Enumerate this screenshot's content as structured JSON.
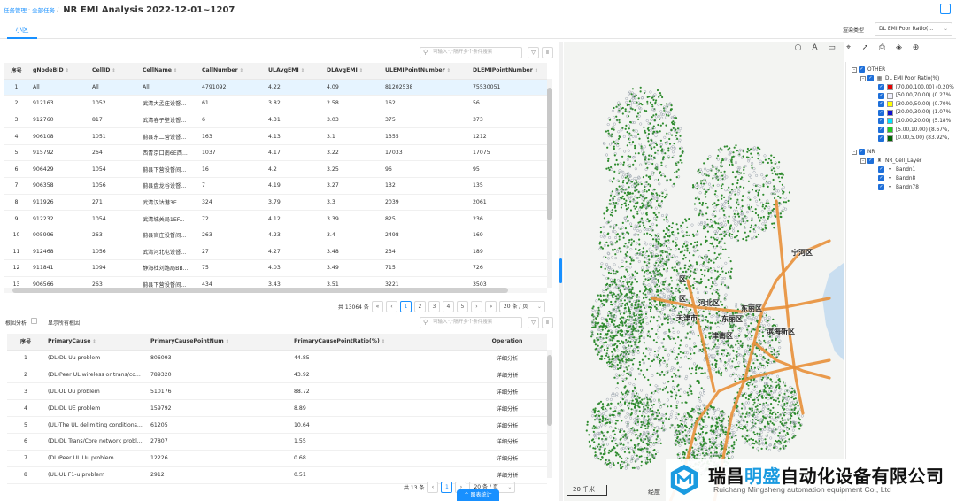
{
  "header": {
    "breadcrumb_1": "任务管理",
    "breadcrumb_sep": "·",
    "breadcrumb_2": "全部任务",
    "separator": "/",
    "title": "NR EMI Analysis 2022-12-01~1207"
  },
  "tabs": [
    {
      "label": "小区"
    }
  ],
  "layer_type": {
    "label": "渲染类型",
    "value": "DL EMI Poor Ratio(..."
  },
  "cell_table": {
    "search_placeholder": "可输入\",\"隔开多个条件搜索",
    "columns": [
      "序号",
      "gNodeBID",
      "CellID",
      "CellName",
      "CallNumber",
      "ULAvgEMI",
      "DLAvgEMI",
      "ULEMIPointNumber",
      "DLEMIPointNumber"
    ],
    "rows": [
      [
        "1",
        "All",
        "All",
        "All",
        "4791092",
        "4.22",
        "4.09",
        "81202538",
        "75530051"
      ],
      [
        "2",
        "912163",
        "1052",
        "武清大孟庄设督...",
        "61",
        "3.82",
        "2.58",
        "162",
        "56"
      ],
      [
        "3",
        "912760",
        "817",
        "武清春子壁设督...",
        "6",
        "4.31",
        "3.03",
        "375",
        "373"
      ],
      [
        "4",
        "906108",
        "1051",
        "蓟县东二营设督...",
        "163",
        "4.13",
        "3.1",
        "1355",
        "1212"
      ],
      [
        "5",
        "915792",
        "264",
        "西青京口南6E西...",
        "1037",
        "4.17",
        "3.22",
        "17033",
        "17075"
      ],
      [
        "6",
        "906429",
        "1054",
        "蓟县下营设督间...",
        "16",
        "4.2",
        "3.25",
        "96",
        "95"
      ],
      [
        "7",
        "906358",
        "1056",
        "蓟县盘龙谷设督...",
        "7",
        "4.19",
        "3.27",
        "132",
        "135"
      ],
      [
        "8",
        "911926",
        "271",
        "武清汉沽港3E...",
        "324",
        "3.79",
        "3.3",
        "2039",
        "2061"
      ],
      [
        "9",
        "912232",
        "1054",
        "武清城关局1EF...",
        "72",
        "4.12",
        "3.39",
        "825",
        "236"
      ],
      [
        "10",
        "905996",
        "263",
        "蓟县官庄设督间...",
        "263",
        "4.23",
        "3.4",
        "2498",
        "169"
      ],
      [
        "11",
        "912468",
        "1056",
        "武清河北屯设督...",
        "27",
        "4.27",
        "3.48",
        "234",
        "189"
      ],
      [
        "12",
        "911841",
        "1094",
        "静海杜刘路局BB...",
        "75",
        "4.03",
        "3.49",
        "715",
        "726"
      ],
      [
        "13",
        "906566",
        "263",
        "蓟县下营设督间...",
        "434",
        "3.43",
        "3.51",
        "3221",
        "3503"
      ]
    ],
    "total_text": "共 13064 条",
    "pages": [
      "1",
      "2",
      "3",
      "4",
      "5"
    ],
    "page_size": "20 条 / 页"
  },
  "cause_section": {
    "label": "根因分析",
    "show_all_label": "显示所有根因",
    "search_placeholder": "可输入\",\"隔开多个条件搜索",
    "columns": [
      "序号",
      "PrimaryCause",
      "PrimaryCausePointNum",
      "PrimaryCausePointRatio(%)",
      "Operation"
    ],
    "rows": [
      [
        "1",
        "(DL)DL Uu problem",
        "806093",
        "44.85",
        "详细分析"
      ],
      [
        "2",
        "(DL)Peer UL wireless or trans/co...",
        "789320",
        "43.92",
        "详细分析"
      ],
      [
        "3",
        "(UL)UL Uu problem",
        "510176",
        "88.72",
        "详细分析"
      ],
      [
        "4",
        "(DL)DL UE problem",
        "159792",
        "8.89",
        "详细分析"
      ],
      [
        "5",
        "(UL)The UL delimiting conditions...",
        "61205",
        "10.64",
        "详细分析"
      ],
      [
        "6",
        "(DL)DL Trans/Core network probl...",
        "27807",
        "1.55",
        "详细分析"
      ],
      [
        "7",
        "(DL)Peer UL Uu problem",
        "12226",
        "0.68",
        "详细分析"
      ],
      [
        "8",
        "(UL)UL F1-u problem",
        "2912",
        "0.51",
        "详细分析"
      ]
    ],
    "total_text": "共 13 条",
    "pages": [
      "1"
    ],
    "page_size": "20 条 / 页",
    "stat_button": "^ 图表统计"
  },
  "map": {
    "labels": [
      "宁河区",
      "河北区",
      "东丽区",
      "天津市",
      "东丽区",
      "津南区",
      "滨海新区",
      "区",
      "区"
    ],
    "scale": "20 千米",
    "coord_label": "经度"
  },
  "legend": {
    "other": "OTHER",
    "ratio_title": "DL EMI Poor Ratio(%)",
    "ranges": [
      {
        "label": "[70.00,100.00] (0.20%",
        "color": "#e60000"
      },
      {
        "label": "[50.00,70.00) (0.27%",
        "color": "#f0f0ff"
      },
      {
        "label": "[30.00,50.00) (0.70%",
        "color": "#ffff00"
      },
      {
        "label": "[20.00,30.00) (1.07%",
        "color": "#1010d0"
      },
      {
        "label": "[10.00,20.00) (5.18%",
        "color": "#00e5ff"
      },
      {
        "label": "[5.00,10.00) (8.67%,",
        "color": "#22cc22"
      },
      {
        "label": "[0.00,5.00) (83.92%,",
        "color": "#006600"
      }
    ],
    "nr": "NR",
    "cell_layer": "NR_Cell_Layer",
    "bands": [
      "Bandn1",
      "Bandn8",
      "Bandn78"
    ]
  },
  "watermark": {
    "cn_1": "瑞昌",
    "cn_2": "明盛",
    "cn_3": "自动化设备有限公司",
    "en": "Ruichang Mingsheng automation equipment Co., Ltd"
  },
  "colors": {
    "accent": "#1890ff",
    "road": "#e8903a",
    "points": "#2e8b2e"
  }
}
